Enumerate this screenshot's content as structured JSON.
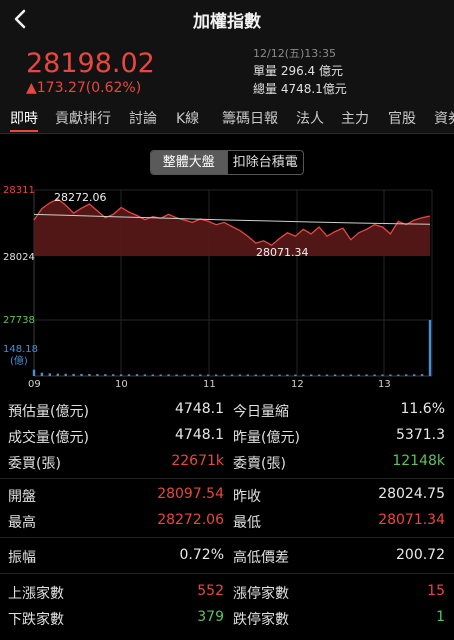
{
  "header": {
    "title": "加權指數"
  },
  "quote": {
    "price": "28198.02",
    "change": "▲173.27(0.62%)",
    "datetime": "12/12(五)13:35",
    "single_volume": "單量 296.4 億元",
    "total_volume": "總量 4748.1億元"
  },
  "tabs": [
    "即時",
    "貢獻排行",
    "討論",
    "K線",
    "籌碼日報",
    "法人",
    "主力",
    "官股",
    "資券"
  ],
  "segment": [
    "整體大盤",
    "扣除台積電"
  ],
  "chart_data": {
    "type": "line",
    "title": "",
    "x_ticks": [
      "09",
      "10",
      "11",
      "12",
      "13"
    ],
    "y_labels": {
      "high": "28311",
      "prev_close": "28024",
      "vol_max": "27738",
      "vol_level": "148.18",
      "vol_unit": "(億)"
    },
    "annotations": {
      "max_label": "28272.06",
      "min_label": "28071.34"
    },
    "series": [
      {
        "values": [
          28180,
          28230,
          28255,
          28272,
          28245,
          28210,
          28232,
          28250,
          28220,
          28190,
          28205,
          28235,
          28215,
          28200,
          28182,
          28195,
          28188,
          28205,
          28190,
          28180,
          28170,
          28185,
          28175,
          28160,
          28170,
          28152,
          28135,
          28110,
          28080,
          28090,
          28071,
          28100,
          28125,
          28110,
          28140,
          28120,
          28150,
          28110,
          28130,
          28145,
          28095,
          28125,
          28140,
          28160,
          28150,
          28120,
          28175,
          28160,
          28180,
          28190,
          28198
        ]
      }
    ],
    "avg_line": [
      28205,
      28200,
      28195,
      28190,
      28185,
      28180,
      28176,
      28172,
      28168,
      28165,
      28162
    ],
    "volume": [
      148,
      78,
      60,
      55,
      52,
      50,
      48,
      46,
      44,
      42,
      40,
      38,
      40,
      42,
      38,
      36,
      35,
      38,
      36,
      34,
      35,
      37,
      36,
      34,
      33,
      35,
      36,
      34,
      33,
      35,
      34,
      32,
      36,
      33,
      34,
      35,
      33,
      34,
      36,
      35,
      34,
      33,
      35,
      34,
      36,
      35,
      33,
      38,
      40,
      45,
      1310
    ],
    "ylim": [
      28024,
      28311
    ],
    "colors": {
      "line": "#e8473f",
      "fill": "#5a1a18",
      "avg": "#cfcfcf",
      "volume": "#4a8fd6"
    }
  },
  "stats": {
    "est_volume_label": "預估量(億元)",
    "est_volume": "4748.1",
    "shrink_label": "今日量縮",
    "shrink": "11.6%",
    "turnover_label": "成交量(億元)",
    "turnover": "4748.1",
    "yest_volume_label": "昨量(億元)",
    "yest_volume": "5371.3",
    "bid_label": "委買(張)",
    "bid": "22671k",
    "ask_label": "委賣(張)",
    "ask": "12148k",
    "open_label": "開盤",
    "open": "28097.54",
    "prev_close_label": "昨收",
    "prev_close": "28024.75",
    "high_label": "最高",
    "high": "28272.06",
    "low_label": "最低",
    "low": "28071.34",
    "amplitude_label": "振幅",
    "amplitude": "0.72%",
    "range_label": "高低價差",
    "range": "200.72",
    "up_label": "上漲家數",
    "up": "552",
    "limit_up_label": "漲停家數",
    "limit_up": "15",
    "down_label": "下跌家數",
    "down": "379",
    "limit_down_label": "跌停家數",
    "limit_down": "1"
  }
}
